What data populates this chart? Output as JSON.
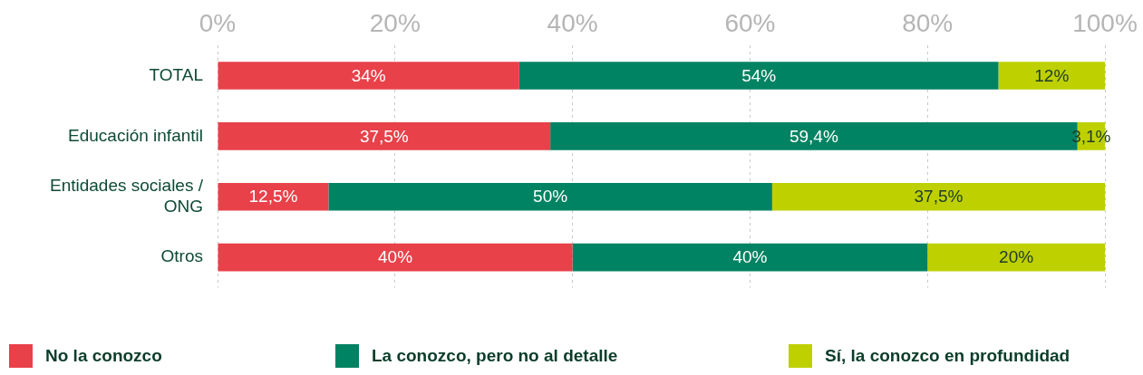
{
  "chart_data": {
    "type": "bar",
    "orientation": "horizontal",
    "stacked": true,
    "categories": [
      "TOTAL",
      "Educación infantil",
      "Entidades sociales / ONG",
      "Otros"
    ],
    "series": [
      {
        "name": "No la conozco",
        "color": "#e8414a",
        "values": [
          34,
          37.5,
          12.5,
          40
        ],
        "value_labels": [
          "34%",
          "37,5%",
          "12,5%",
          "40%"
        ]
      },
      {
        "name": "La conozco, pero no al detalle",
        "color": "#008362",
        "values": [
          54,
          59.4,
          50,
          40
        ],
        "value_labels": [
          "54%",
          "59,4%",
          "50%",
          "40%"
        ]
      },
      {
        "name": "Sí, la conozco en profundidad",
        "color": "#bed000",
        "values": [
          12,
          3.1,
          37.5,
          20
        ],
        "value_labels": [
          "12%",
          "3,1%",
          "37,5%",
          "20%"
        ]
      }
    ],
    "xlim": [
      0,
      100
    ],
    "xticks": [
      {
        "value": 0,
        "label": "0%"
      },
      {
        "value": 20,
        "label": "20%"
      },
      {
        "value": 40,
        "label": "40%"
      },
      {
        "value": 60,
        "label": "60%"
      },
      {
        "value": 80,
        "label": "80%"
      },
      {
        "value": 100,
        "label": "100%"
      }
    ],
    "grid": "x",
    "legend": "bottom"
  }
}
